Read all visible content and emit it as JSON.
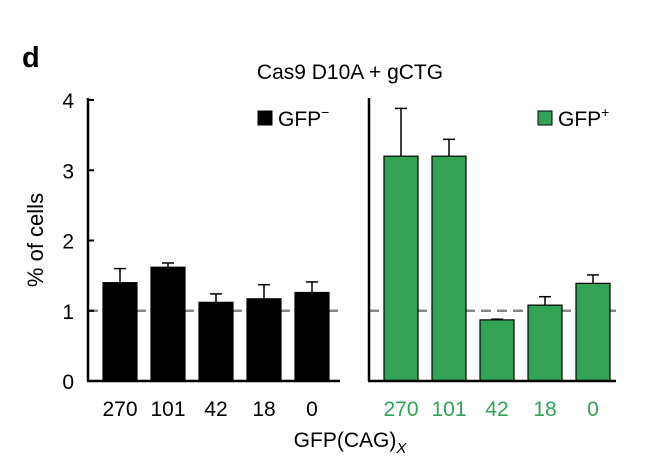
{
  "panel_label": "d",
  "chart_data": {
    "type": "bar",
    "title": "Cas9 D10A + gCTG",
    "ylabel": "% of cells",
    "xlabel_main": "GFP(CAG)",
    "xlabel_sub": "X",
    "ylim": [
      0,
      4
    ],
    "yticks": [
      "0",
      "1",
      "2",
      "3",
      "4"
    ],
    "reference_line": 1,
    "legend_placement": "top-right of each panel",
    "categories": [
      "270",
      "101",
      "42",
      "18",
      "0"
    ],
    "series": [
      {
        "name": "GFP",
        "name_sup": "−",
        "color": "#000000",
        "tick_color": "#000000",
        "values": [
          1.4,
          1.62,
          1.12,
          1.17,
          1.26
        ],
        "errors": [
          0.2,
          0.06,
          0.12,
          0.2,
          0.15
        ]
      },
      {
        "name": "GFP",
        "name_sup": "+",
        "color": "#32a354",
        "tick_color": "#32a354",
        "values": [
          3.2,
          3.2,
          0.87,
          1.08,
          1.39
        ],
        "errors": [
          0.68,
          0.24,
          0.01,
          0.12,
          0.12
        ]
      }
    ]
  }
}
